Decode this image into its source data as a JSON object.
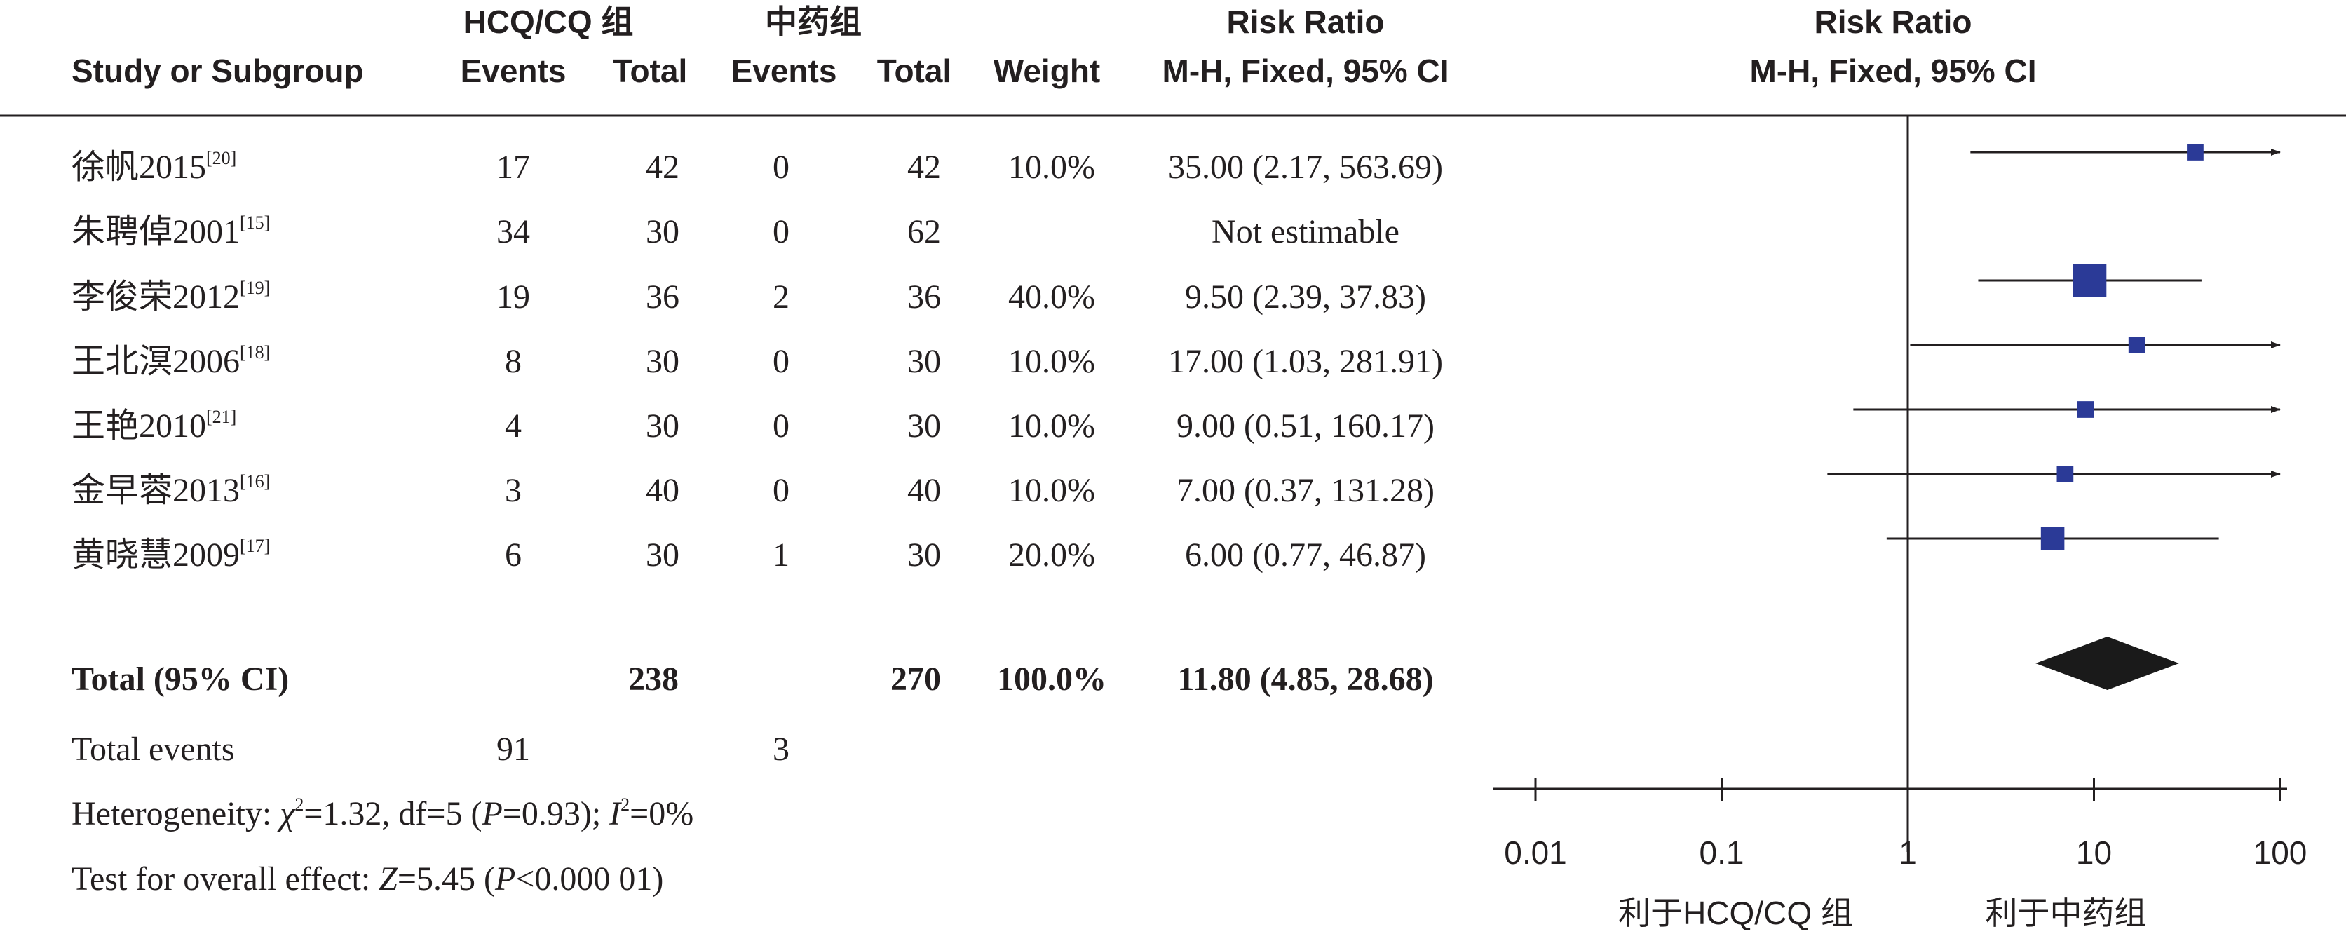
{
  "header": {
    "group1": "HCQ/CQ 组",
    "group2": "中药组",
    "study_col": "Study or Subgroup",
    "events": "Events",
    "total": "Total",
    "weight": "Weight",
    "rr_title": "Risk Ratio",
    "rr_method": "M-H, Fixed, 95% CI",
    "plot_title": "Risk Ratio",
    "plot_method": "M-H, Fixed, 95% CI"
  },
  "studies": [
    {
      "name": "徐帆2015",
      "ref": "[20]",
      "e1": "17",
      "t1": "42",
      "e2": "0",
      "t2": "42",
      "weight": "10.0%",
      "ci": "35.00 (2.17, 563.69)"
    },
    {
      "name": "朱聘倬2001",
      "ref": "[15]",
      "e1": "34",
      "t1": "30",
      "e2": "0",
      "t2": "62",
      "weight": "",
      "ci": "Not estimable"
    },
    {
      "name": "李俊荣2012",
      "ref": "[19]",
      "e1": "19",
      "t1": "36",
      "e2": "2",
      "t2": "36",
      "weight": "40.0%",
      "ci": "9.50 (2.39, 37.83)"
    },
    {
      "name": "王北溟2006",
      "ref": "[18]",
      "e1": "8",
      "t1": "30",
      "e2": "0",
      "t2": "30",
      "weight": "10.0%",
      "ci": "17.00 (1.03, 281.91)"
    },
    {
      "name": "王艳2010",
      "ref": "[21]",
      "e1": "4",
      "t1": "30",
      "e2": "0",
      "t2": "30",
      "weight": "10.0%",
      "ci": "9.00 (0.51, 160.17)"
    },
    {
      "name": "金早蓉2013",
      "ref": "[16]",
      "e1": "3",
      "t1": "40",
      "e2": "0",
      "t2": "40",
      "weight": "10.0%",
      "ci": "7.00 (0.37, 131.28)"
    },
    {
      "name": "黄晓慧2009",
      "ref": "[17]",
      "e1": "6",
      "t1": "30",
      "e2": "1",
      "t2": "30",
      "weight": "20.0%",
      "ci": "6.00 (0.77, 46.87)"
    }
  ],
  "total": {
    "label": "Total (95% CI)",
    "t1": "238",
    "t2": "270",
    "weight": "100.0%",
    "ci": "11.80 (4.85, 28.68)"
  },
  "total_events": {
    "label": "Total events",
    "e1": "91",
    "e2": "3"
  },
  "heterogeneity": {
    "label": "Heterogeneity: ",
    "chi": "χ",
    "chi_sup": "2",
    "chi_val": "=1.32, df=5 (",
    "p": "P",
    "p_val": "=0.93); ",
    "i": "I",
    "i_sup": "2",
    "i_val": "=0%"
  },
  "overall": {
    "label": "Test for overall effect: ",
    "z": "Z",
    "z_val": "=5.45 (",
    "p": "P",
    "p_val": "<0.000 01)"
  },
  "chart_data": {
    "type": "forest",
    "x_scale": "log",
    "xlim": [
      0.01,
      100
    ],
    "x_ticks": [
      "0.01",
      "0.1",
      "1",
      "10",
      "100"
    ],
    "favours_left": "利于HCQ/CQ 组",
    "favours_right": "利于中药组",
    "studies": [
      {
        "estimate": 35.0,
        "lower": 2.17,
        "upper": 563.69,
        "weight": 10.0
      },
      {
        "estimate": null,
        "lower": null,
        "upper": null,
        "weight": null
      },
      {
        "estimate": 9.5,
        "lower": 2.39,
        "upper": 37.83,
        "weight": 40.0
      },
      {
        "estimate": 17.0,
        "lower": 1.03,
        "upper": 281.91,
        "weight": 10.0
      },
      {
        "estimate": 9.0,
        "lower": 0.51,
        "upper": 160.17,
        "weight": 10.0
      },
      {
        "estimate": 7.0,
        "lower": 0.37,
        "upper": 131.28,
        "weight": 10.0
      },
      {
        "estimate": 6.0,
        "lower": 0.77,
        "upper": 46.87,
        "weight": 20.0
      }
    ],
    "pooled": {
      "estimate": 11.8,
      "lower": 4.85,
      "upper": 28.68
    },
    "colors": {
      "study_marker": "#2b3a97",
      "pooled_diamond": "#1a1a1a",
      "lines": "#231f20"
    }
  }
}
